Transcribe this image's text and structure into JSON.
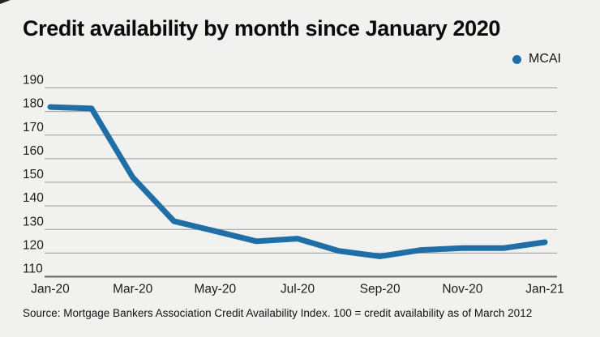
{
  "header": {
    "title": "Credit availability by month since January 2020",
    "legend": {
      "label": "MCAI"
    }
  },
  "chart_data": {
    "type": "line",
    "title": "Credit availability by month since January 2020",
    "categories": [
      "Jan-20",
      "Feb-20",
      "Mar-20",
      "Apr-20",
      "May-20",
      "Jun-20",
      "Jul-20",
      "Aug-20",
      "Sep-20",
      "Oct-20",
      "Nov-20",
      "Dec-20",
      "Jan-21"
    ],
    "series": [
      {
        "name": "MCAI",
        "color": "#1f6ea5",
        "values": [
          181.9,
          181.3,
          152.1,
          133.5,
          129.3,
          125.0,
          126.1,
          120.9,
          118.6,
          121.3,
          122.1,
          122.1,
          124.6
        ]
      }
    ],
    "xlabel": "",
    "ylabel": "",
    "ylim": [
      110,
      190
    ],
    "y_tick_step": 10,
    "x_tick_every": 2,
    "grid": "horizontal",
    "legend_position": "top-right"
  },
  "footer": {
    "source": "Source: Mortgage Bankers Association Credit Availability Index. 100 = credit availability as of March 2012"
  },
  "colors": {
    "background": "#f1f1ef",
    "line": "#1f6ea5",
    "grid": "#9a9a9a",
    "axis": "#666666",
    "text": "#111111"
  }
}
